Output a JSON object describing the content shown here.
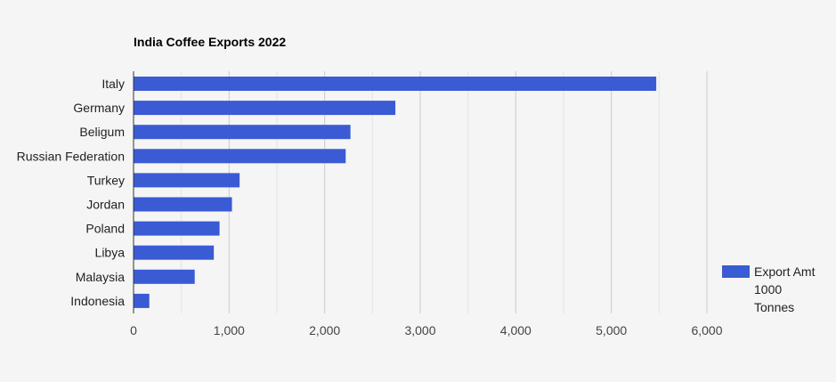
{
  "chart_data": {
    "type": "bar",
    "orientation": "horizontal",
    "title": "India Coffee Exports 2022",
    "xlabel": "",
    "ylabel": "",
    "categories": [
      "Italy",
      "Germany",
      "Beligum",
      "Russian Federation",
      "Turkey",
      "Jordan",
      "Poland",
      "Libya",
      "Malaysia",
      "Indonesia"
    ],
    "series": [
      {
        "name": "Export Amt 1000 Tonnes",
        "values": [
          5470,
          2740,
          2270,
          2220,
          1110,
          1030,
          900,
          840,
          640,
          165
        ],
        "color": "#3a5bd4"
      }
    ],
    "legend": {
      "position": "right",
      "lines": [
        "Export Amt",
        "1000",
        "Tonnes"
      ]
    },
    "xlim": [
      0,
      6000
    ],
    "x_ticks": [
      0,
      1000,
      2000,
      3000,
      4000,
      5000,
      6000
    ],
    "x_tick_labels": [
      "0",
      "1,000",
      "2,000",
      "3,000",
      "4,000",
      "5,000",
      "6,000"
    ],
    "grid": true,
    "colors": {
      "background": "#f5f5f5",
      "bar": "#3a5bd4",
      "gridline_major": "#cccccc",
      "gridline_minor": "#e4e4e4",
      "axis": "#333333",
      "text": "#222222",
      "tick_text": "#444444"
    }
  }
}
